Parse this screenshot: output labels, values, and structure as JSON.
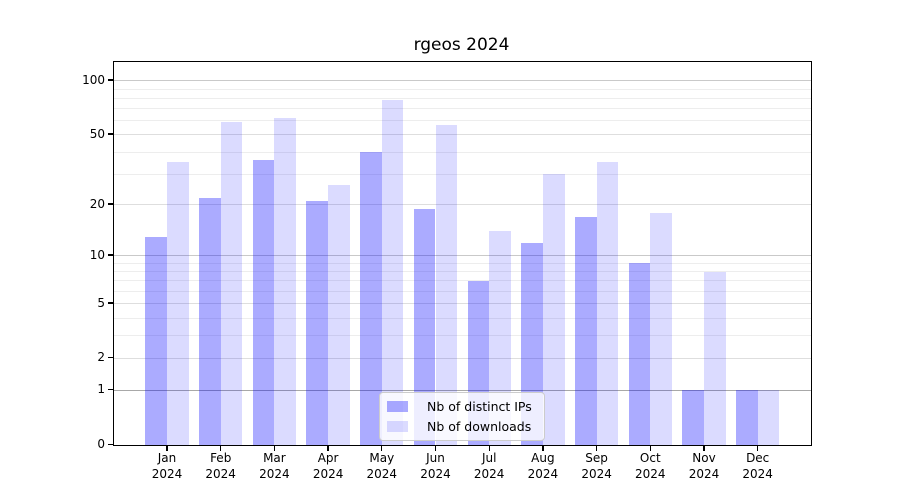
{
  "chart_data": {
    "type": "bar",
    "title": "rgeos 2024",
    "categories": [
      "Jan",
      "Feb",
      "Mar",
      "Apr",
      "May",
      "Jun",
      "Jul",
      "Aug",
      "Sep",
      "Oct",
      "Nov",
      "Dec"
    ],
    "x_year_label": "2024",
    "series": [
      {
        "name": "Nb of distinct IPs",
        "color": "rgba(0,0,255,0.33)",
        "values": [
          13,
          22,
          36,
          21,
          40,
          19,
          7,
          12,
          17,
          9,
          1,
          1
        ]
      },
      {
        "name": "Nb of downloads",
        "color": "rgba(0,0,255,0.14)",
        "values": [
          35,
          59,
          62,
          26,
          78,
          57,
          14,
          30,
          35,
          18,
          8,
          1
        ]
      }
    ],
    "y_axis": {
      "scale": "log10(1+v)",
      "tick_labels": [
        0,
        1,
        2,
        5,
        10,
        20,
        50,
        100
      ],
      "max_value": 127.5,
      "gridlines": {
        "unit": [
          1
        ],
        "powers": [
          10,
          100
        ],
        "labeled": [
          2,
          5,
          20,
          50
        ],
        "minor": [
          3,
          4,
          6,
          7,
          8,
          9,
          30,
          40,
          60,
          70,
          80,
          90
        ]
      }
    },
    "grid_colors": {
      "unit": "#a8a8a8",
      "powers": "#c9c9c9",
      "labeled": "#dedede",
      "minor": "#ededed"
    },
    "legend_position": "lower center",
    "grid": "on",
    "background": "#ffffff",
    "text_color": "#000000"
  }
}
